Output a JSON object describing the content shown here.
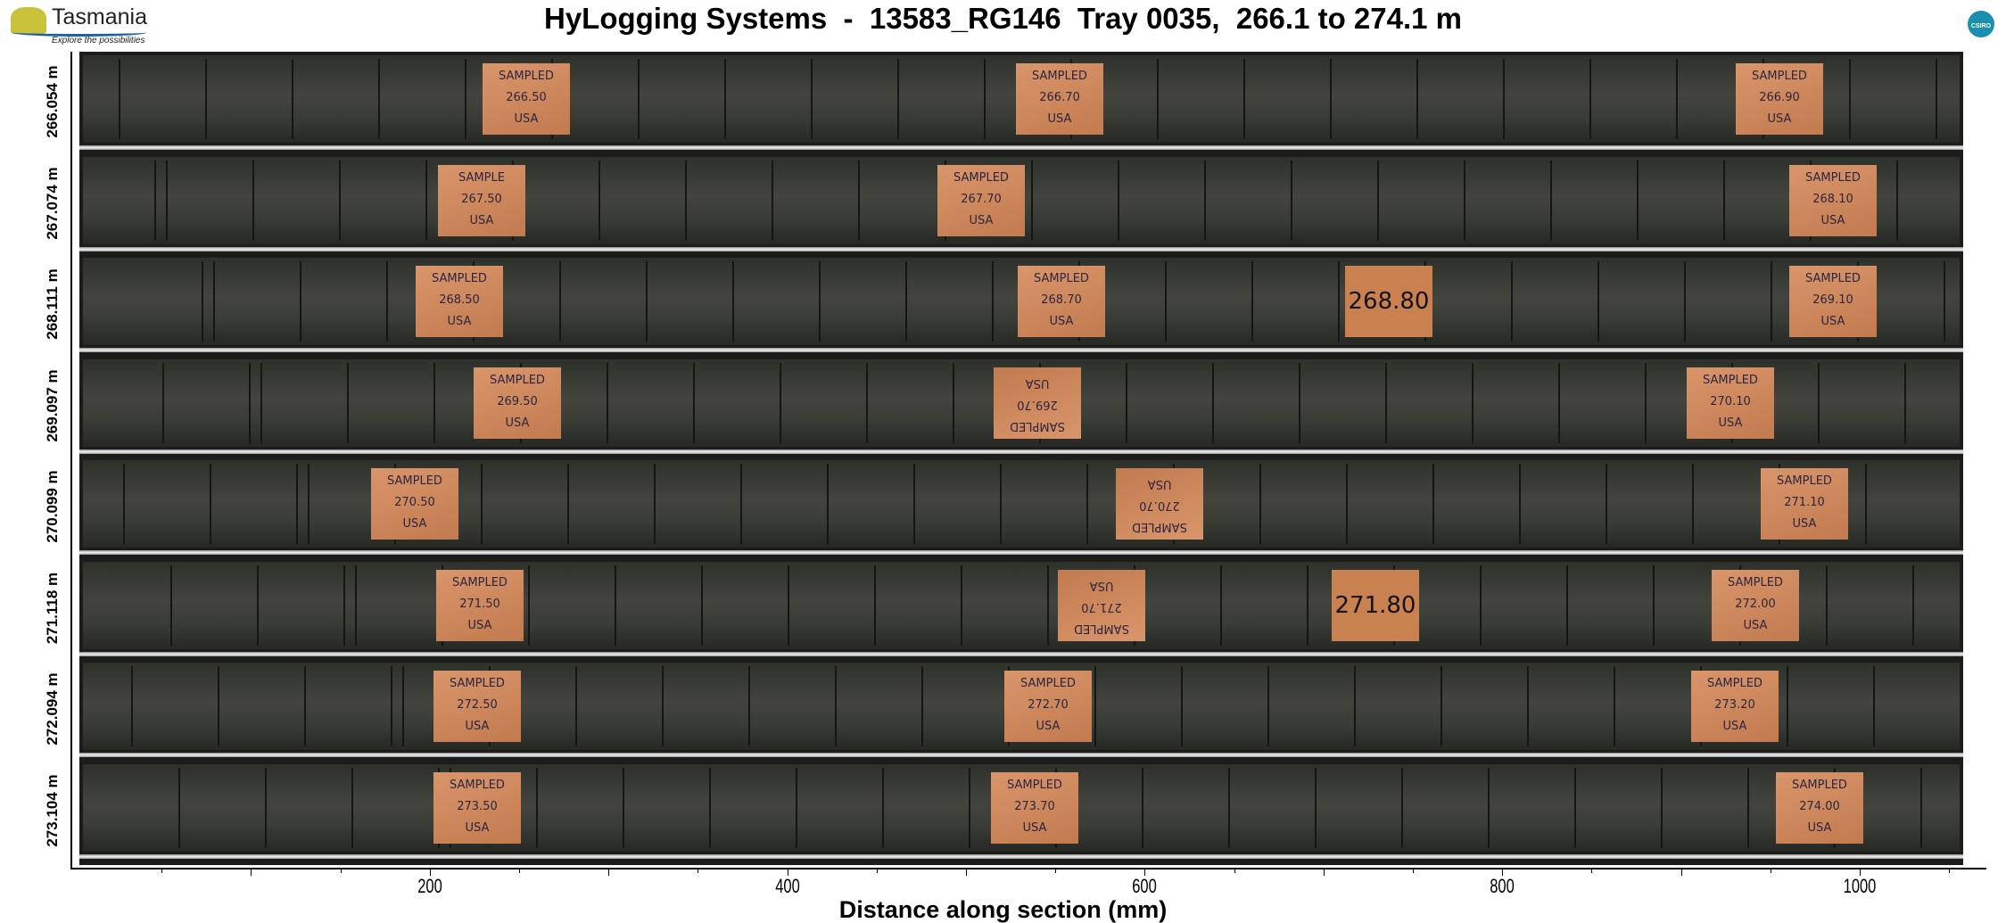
{
  "title": "HyLogging Systems  -  13583_RG146  Tray 0035,  266.1 to 274.1 m",
  "logo_left": {
    "word": "Tasmania",
    "tagline": "Explore the possibilities"
  },
  "logo_right": {
    "word": "CSIRO"
  },
  "chart_data": {
    "type": "image",
    "xlabel": "Distance along section (mm)",
    "xlim": [
      0,
      1070
    ],
    "x_ticks": [
      200,
      400,
      600,
      800,
      1000
    ],
    "row_depth_labels": [
      "266.054 m",
      "267.074 m",
      "268.111 m",
      "269.097 m",
      "270.099 m",
      "271.118 m",
      "272.094 m",
      "273.104 m"
    ]
  },
  "core_rows": [
    {
      "tags": [
        [
          "SAMPLED",
          "266.50",
          "USA"
        ],
        [
          "SAMPLED",
          "266.70",
          "USA"
        ],
        [
          "SAMPLED",
          "266.90",
          "USA"
        ]
      ]
    },
    {
      "tags": [
        [
          "SAMPLE",
          "267.50",
          "USA"
        ],
        [
          "SAMPLED",
          "267.70",
          "USA"
        ],
        [
          "SAMPLED",
          "268.10",
          "USA"
        ]
      ]
    },
    {
      "tags": [
        [
          "SAMPLED",
          "268.50",
          "USA"
        ],
        [
          "SAMPLED",
          "268.70",
          "USA"
        ],
        [
          "268.80"
        ],
        [
          "SAMPLED",
          "269.10",
          "USA"
        ]
      ]
    },
    {
      "tags": [
        [
          "SAMPLED",
          "269.50",
          "USA"
        ],
        [
          "SAMPLED",
          "269.70",
          "USA"
        ],
        [
          "SAMPLED",
          "270.10",
          "USA"
        ]
      ]
    },
    {
      "tags": [
        [
          "SAMPLED",
          "270.50",
          "USA"
        ],
        [
          "SAMPLED",
          "270.70",
          "USA"
        ],
        [
          "SAMPLED",
          "271.10",
          "USA"
        ]
      ]
    },
    {
      "tags": [
        [
          "SAMPLED",
          "271.50",
          "USA"
        ],
        [
          "SAMPLED",
          "271.70",
          "USA"
        ],
        [
          "271.80"
        ],
        [
          "SAMPLED",
          "272.00",
          "USA"
        ]
      ]
    },
    {
      "tags": [
        [
          "SAMPLED",
          "272.50",
          "USA"
        ],
        [
          "SAMPLED",
          "272.70",
          "USA"
        ],
        [
          "SAMPLED",
          "273.20",
          "USA"
        ]
      ]
    },
    {
      "tags": [
        [
          "SAMPLED",
          "273.50",
          "USA"
        ],
        [
          "SAMPLED",
          "273.70",
          "USA"
        ],
        [
          "SAMPLED",
          "274.00",
          "USA"
        ]
      ]
    }
  ]
}
